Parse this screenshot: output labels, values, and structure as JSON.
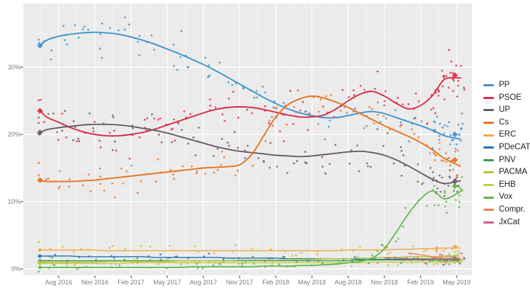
{
  "style": {
    "page_bg": "#FFFFFF",
    "panel_bg": "#EBEBEB",
    "grid_major": "#FFFFFF",
    "grid_minor": "#FFFFFF",
    "axis_tick_color": "#333333",
    "tick_label_color": "#7B7B7B",
    "legend_text_color": "#1E1E1E"
  },
  "chart_data": {
    "type": "scatter",
    "subtype": "poll-scatter-with-loess-trend-lines",
    "title": "",
    "grid": "on",
    "legend_position": "right",
    "x_axis": {
      "tick_labels": [
        "Aug 2016",
        "Nov 2016",
        "Feb 2017",
        "May 2017",
        "Aug 2017",
        "Nov 2017",
        "Feb 2018",
        "May 2018",
        "Aug 2018",
        "Nov 2018",
        "Feb 2019",
        "May 2019"
      ],
      "tick_month_index": [
        2,
        5,
        8,
        11,
        14,
        17,
        20,
        23,
        26,
        29,
        32,
        35
      ],
      "range_month_index": [
        -0.93,
        36.3
      ]
    },
    "y_axis": {
      "tick_labels": [
        "0%",
        "10%",
        "20%",
        "30%"
      ],
      "tick_values": [
        0,
        10,
        20,
        30
      ],
      "range": [
        -0.95,
        39.5
      ]
    },
    "months_note": "month index 0 = Jun 2016, 35 = May 2019; values are vote-intention percent read from the trend lines",
    "series": [
      {
        "name": "PP",
        "color": "#3E92CB",
        "line_width": 1.9,
        "values": [
          33.3,
          34.0,
          34.6,
          34.9,
          35.1,
          35.2,
          35.1,
          34.9,
          34.5,
          34.0,
          33.4,
          32.7,
          32.0,
          31.2,
          30.4,
          29.5,
          28.5,
          27.5,
          26.5,
          25.5,
          24.6,
          23.8,
          23.2,
          22.8,
          22.5,
          22.5,
          22.8,
          23.2,
          23.4,
          23.1,
          22.5,
          21.9,
          21.3,
          20.6,
          19.8,
          19.3
        ],
        "dots": [
          {
            "from": 0,
            "to": 35,
            "per_month": 2.4,
            "sd": 1.5
          }
        ],
        "end_extra": {
          "count": 22,
          "sd": 1.5
        }
      },
      {
        "name": "PSOE",
        "color": "#DB2A43",
        "line_width": 1.9,
        "values": [
          23.5,
          22.6,
          21.8,
          21.0,
          20.4,
          20.0,
          19.8,
          19.8,
          20.0,
          20.3,
          20.8,
          21.4,
          22.0,
          22.6,
          23.2,
          23.7,
          24.0,
          24.1,
          24.0,
          23.7,
          23.3,
          22.9,
          22.6,
          22.6,
          22.9,
          23.8,
          25.0,
          26.0,
          26.4,
          25.7,
          24.6,
          23.8,
          24.3,
          25.8,
          28.2,
          28.4
        ],
        "dots": [
          {
            "from": 0,
            "to": 35,
            "per_month": 2.4,
            "sd": 1.5
          }
        ],
        "end_extra": {
          "count": 26,
          "sd": 1.7
        }
      },
      {
        "name": "UP",
        "color": "#6A5A68",
        "line_width": 1.9,
        "values": [
          20.3,
          20.7,
          21.0,
          21.2,
          21.4,
          21.5,
          21.5,
          21.4,
          21.2,
          20.9,
          20.6,
          20.2,
          19.7,
          19.2,
          18.7,
          18.2,
          17.8,
          17.5,
          17.3,
          17.1,
          16.9,
          16.8,
          16.7,
          16.8,
          17.0,
          17.2,
          17.4,
          17.5,
          17.3,
          16.9,
          16.2,
          15.3,
          14.3,
          13.3,
          12.7,
          13.1
        ],
        "dots": [
          {
            "from": 0,
            "to": 35,
            "per_month": 2.4,
            "sd": 1.3
          }
        ],
        "end_extra": {
          "count": 16,
          "sd": 1.2
        }
      },
      {
        "name": "Cs",
        "color": "#E8711F",
        "line_width": 1.9,
        "values": [
          13.1,
          13.0,
          13.0,
          13.0,
          13.1,
          13.2,
          13.4,
          13.6,
          13.8,
          14.0,
          14.2,
          14.4,
          14.6,
          14.8,
          15.0,
          15.1,
          15.2,
          15.5,
          17.0,
          19.8,
          22.6,
          24.4,
          25.3,
          25.7,
          25.4,
          24.8,
          24.0,
          23.1,
          22.2,
          21.3,
          20.5,
          19.7,
          18.8,
          17.7,
          16.4,
          15.3
        ],
        "dots": [
          {
            "from": 0,
            "to": 35,
            "per_month": 2.4,
            "sd": 1.2
          }
        ],
        "end_extra": {
          "count": 16,
          "sd": 1.2
        }
      },
      {
        "name": "ERC",
        "color": "#F2A83B",
        "line_width": 1.4,
        "values": [
          2.8,
          2.8,
          2.8,
          2.8,
          2.8,
          2.8,
          2.7,
          2.7,
          2.7,
          2.7,
          2.7,
          2.7,
          2.7,
          2.7,
          2.7,
          2.7,
          2.7,
          2.7,
          2.7,
          2.7,
          2.7,
          2.7,
          2.7,
          2.7,
          2.7,
          2.7,
          2.8,
          2.8,
          2.8,
          2.8,
          2.9,
          2.9,
          3.0,
          3.0,
          3.1,
          3.1
        ],
        "dots": [
          {
            "from": 0,
            "to": 35,
            "per_month": 1.0,
            "sd": 0.5
          }
        ],
        "end_extra": {
          "count": 10,
          "sd": 0.5
        }
      },
      {
        "name": "PDeCAT",
        "color": "#2272B5",
        "line_width": 1.4,
        "values": [
          1.9,
          1.9,
          1.9,
          1.9,
          1.8,
          1.8,
          1.8,
          1.8,
          1.8,
          1.8,
          1.7,
          1.7,
          1.7,
          1.7,
          1.7,
          1.7,
          1.6,
          1.6,
          1.6,
          1.6,
          1.6,
          1.5,
          1.5,
          1.5,
          1.5,
          1.5,
          1.5,
          1.4,
          1.4,
          1.4,
          1.4,
          1.4,
          1.4,
          1.3,
          1.3,
          1.3
        ],
        "dots": [
          {
            "from": 0,
            "to": 35,
            "per_month": 1.0,
            "sd": 0.4
          }
        ],
        "end_extra": {
          "count": 6,
          "sd": 0.35
        }
      },
      {
        "name": "PNV",
        "color": "#3E9C4B",
        "line_width": 1.4,
        "values": [
          1.2,
          1.2,
          1.2,
          1.2,
          1.2,
          1.2,
          1.2,
          1.2,
          1.2,
          1.2,
          1.2,
          1.2,
          1.2,
          1.2,
          1.2,
          1.2,
          1.2,
          1.2,
          1.2,
          1.2,
          1.2,
          1.2,
          1.2,
          1.2,
          1.2,
          1.2,
          1.2,
          1.3,
          1.3,
          1.3,
          1.3,
          1.3,
          1.3,
          1.3,
          1.3,
          1.3
        ],
        "dots": [
          {
            "from": 0,
            "to": 35,
            "per_month": 0.8,
            "sd": 0.3
          }
        ],
        "end_extra": {
          "count": 5,
          "sd": 0.3
        }
      },
      {
        "name": "PACMA",
        "color": "#AFC636",
        "line_width": 1.4,
        "values": [
          1.0,
          1.0,
          1.0,
          1.0,
          1.0,
          1.0,
          1.1,
          1.1,
          1.1,
          1.1,
          1.1,
          1.1,
          1.2,
          1.2,
          1.2,
          1.2,
          1.2,
          1.3,
          1.3,
          1.3,
          1.3,
          1.4,
          1.4,
          1.4,
          1.5,
          1.5,
          1.5,
          1.6,
          1.6,
          1.7,
          1.7,
          1.8,
          1.8,
          1.8,
          1.9,
          1.9
        ],
        "dots": [
          {
            "from": 0,
            "to": 35,
            "per_month": 1.0,
            "sd": 0.4
          }
        ],
        "end_extra": {
          "count": 6,
          "sd": 0.4
        }
      },
      {
        "name": "EHB",
        "color": "#C3CC3F",
        "line_width": 1.4,
        "values": [
          0.8,
          0.8,
          0.8,
          0.8,
          0.8,
          0.8,
          0.8,
          0.8,
          0.9,
          0.9,
          0.9,
          0.9,
          0.9,
          0.9,
          0.9,
          0.9,
          0.9,
          0.9,
          0.9,
          0.9,
          0.9,
          0.9,
          0.9,
          0.9,
          0.9,
          0.9,
          0.9,
          0.9,
          1.0,
          1.0,
          1.0,
          1.0,
          1.0,
          1.0,
          1.0,
          1.0
        ],
        "dots": [
          {
            "from": 0,
            "to": 35,
            "per_month": 0.8,
            "sd": 0.3
          }
        ],
        "end_extra": {
          "count": 5,
          "sd": 0.3
        }
      },
      {
        "name": "Vox",
        "color": "#5BB747",
        "line_width": 1.7,
        "values": [
          0.2,
          0.2,
          0.2,
          0.2,
          0.2,
          0.2,
          0.2,
          0.2,
          0.2,
          0.2,
          0.2,
          0.2,
          0.2,
          0.3,
          0.3,
          0.3,
          0.3,
          0.3,
          0.3,
          0.4,
          0.4,
          0.4,
          0.5,
          0.5,
          0.6,
          0.7,
          0.9,
          1.1,
          1.6,
          3.0,
          5.5,
          8.2,
          10.4,
          11.6,
          10.4,
          11.5
        ],
        "dots": [
          {
            "from": 0,
            "to": 27,
            "per_month": 0.8,
            "sd": 0.25
          },
          {
            "from": 28,
            "to": 35,
            "per_month": 2.5,
            "sd": 1.1
          }
        ],
        "end_extra": {
          "count": 16,
          "sd": 1.2
        }
      },
      {
        "name": "Compr.",
        "color": "#EE8348",
        "line_width": 1.4,
        "values": [
          null,
          null,
          null,
          null,
          null,
          null,
          null,
          null,
          null,
          null,
          null,
          null,
          null,
          null,
          null,
          null,
          null,
          null,
          null,
          null,
          null,
          null,
          null,
          null,
          null,
          null,
          null,
          null,
          null,
          null,
          null,
          2.35,
          2.1,
          1.8,
          1.55,
          1.45
        ],
        "dots": [
          {
            "from": 31,
            "to": 35,
            "per_month": 1.2,
            "sd": 0.35
          }
        ],
        "end_extra": {
          "count": 8,
          "sd": 0.4
        }
      },
      {
        "name": "JxCat",
        "color": "#CC5F7C",
        "line_width": 1.4,
        "values": [
          null,
          null,
          null,
          null,
          null,
          null,
          null,
          null,
          null,
          null,
          null,
          null,
          null,
          null,
          null,
          null,
          null,
          null,
          null,
          null,
          null,
          null,
          null,
          null,
          null,
          null,
          null,
          null,
          null,
          1.6,
          1.6,
          1.5,
          1.5,
          1.5,
          1.5,
          1.5
        ],
        "dots": [
          {
            "from": 29,
            "to": 35,
            "per_month": 1.5,
            "sd": 0.4
          }
        ],
        "end_extra": {
          "count": 12,
          "sd": 0.4
        }
      }
    ],
    "election_markers": {
      "start_month": 0.45,
      "end_month": 34.85,
      "start": {
        "PP": 33.2,
        "PSOE": 23.5,
        "UP": 20.3,
        "Cs": 13.2,
        "ERC": 2.8,
        "PDeCAT": 1.9,
        "PNV": 1.2,
        "PACMA": 1.0,
        "EHB": 0.8,
        "Vox": 0.2
      },
      "end": {
        "PSOE": 28.8,
        "PP": 20.0,
        "Cs": 16.2,
        "UP": 13.0,
        "Vox": 12.3,
        "ERC": 3.3,
        "PACMA": 1.9,
        "JxCat": 1.6,
        "PDeCAT": 1.4,
        "PNV": 1.3,
        "Compr.": 1.0,
        "EHB": 1.0
      }
    },
    "legend": {
      "items": [
        "PP",
        "PSOE",
        "UP",
        "Cs",
        "ERC",
        "PDeCAT",
        "PNV",
        "PACMA",
        "EHB",
        "Vox",
        "Compr.",
        "JxCat"
      ]
    }
  }
}
